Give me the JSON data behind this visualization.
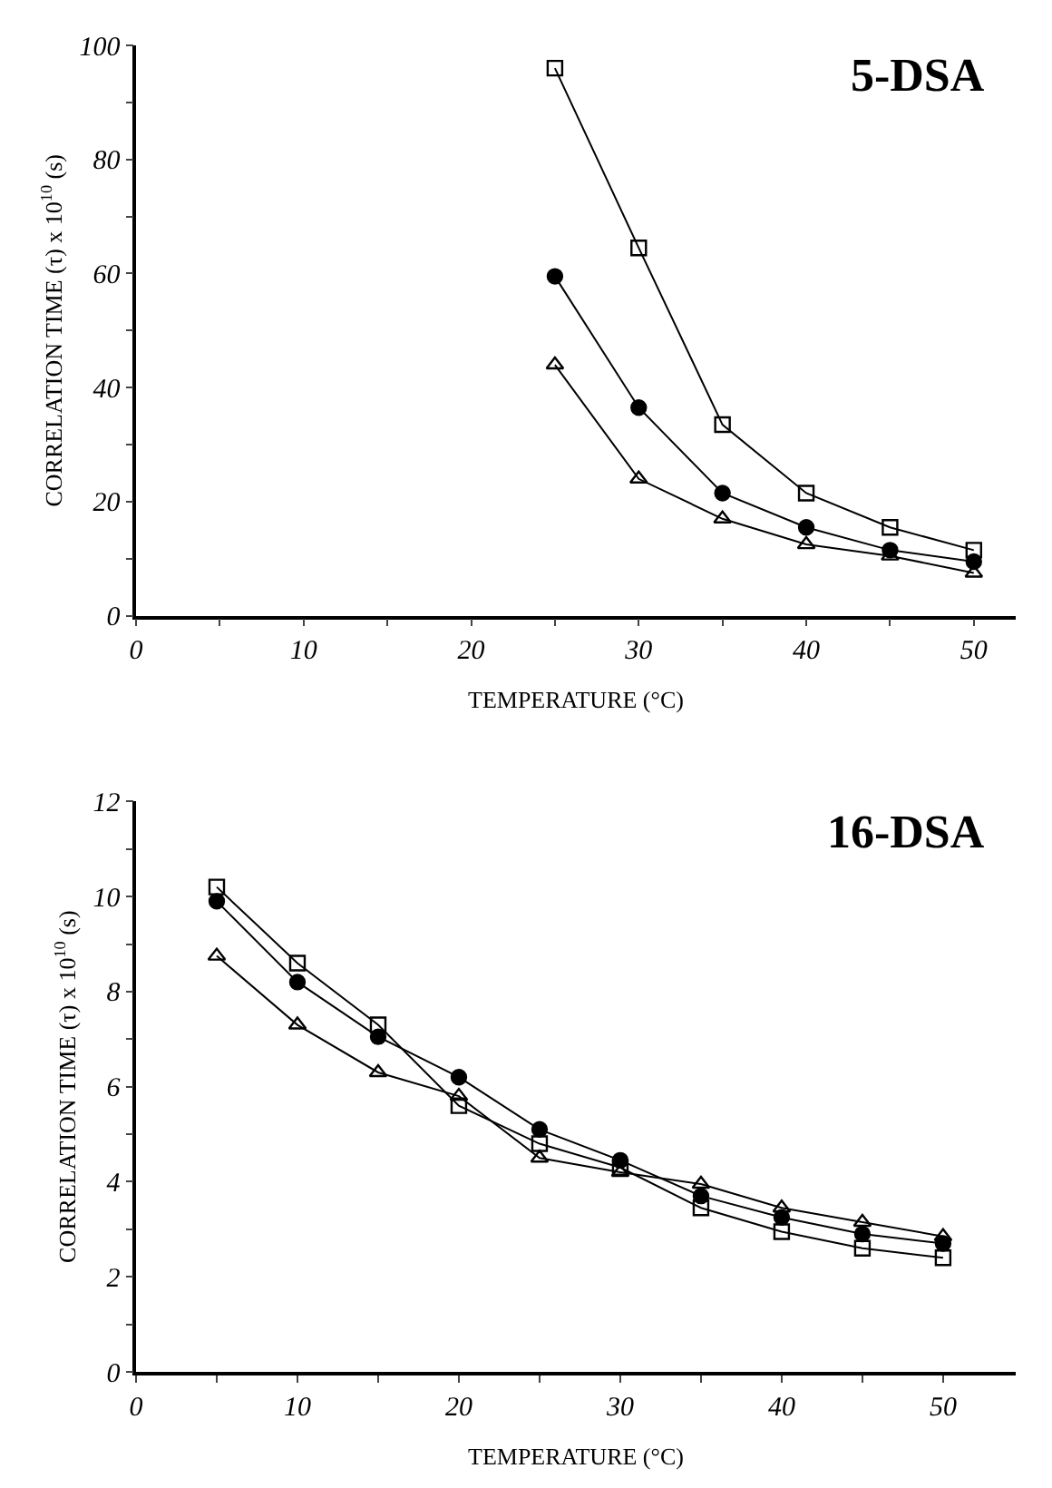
{
  "chart_data": [
    {
      "type": "line",
      "title": "5-DSA",
      "xlabel": "TEMPERATURE (°C)",
      "ylabel": "CORRELATION TIME (τ) x 10$^{10}$ (s)",
      "x": [
        25,
        30,
        35,
        40,
        45,
        50
      ],
      "series": [
        {
          "color": "#000000",
          "marker": "square-open",
          "values": [
            96,
            64.5,
            33.5,
            21.5,
            15.5,
            11.5
          ]
        },
        {
          "color": "#000000",
          "marker": "circle",
          "values": [
            59.5,
            36.5,
            21.5,
            15.5,
            11.5,
            9.5
          ]
        },
        {
          "color": "#000000",
          "marker": "triangle-open",
          "values": [
            44,
            24,
            17,
            12.5,
            10.5,
            7.5
          ]
        }
      ],
      "xlim": [
        0,
        52.5
      ],
      "xticks": [
        0,
        {
          "value": 5,
          "label": null
        },
        10,
        {
          "value": 15,
          "label": null
        },
        20,
        {
          "value": 25,
          "label": null
        },
        30,
        {
          "value": 35,
          "label": null
        },
        40,
        {
          "value": 45,
          "label": null
        },
        50
      ],
      "ylim": [
        0,
        100
      ],
      "yticks": [
        0,
        {
          "value": 10,
          "label": null
        },
        20,
        {
          "value": 30,
          "label": null
        },
        40,
        {
          "value": 50,
          "label": null
        },
        60,
        {
          "value": 70,
          "label": null
        },
        80,
        {
          "value": 90,
          "label": null
        },
        100
      ],
      "line_style": "solid"
    },
    {
      "type": "line",
      "title": "16-DSA",
      "xlabel": "TEMPERATURE (°C)",
      "ylabel": "CORRELATION TIME (τ) x 10$^{10}$ (s)",
      "x": [
        5,
        10,
        15,
        20,
        25,
        30,
        35,
        40,
        45,
        50
      ],
      "series": [
        {
          "color": "#000000",
          "marker": "square-open",
          "values": [
            10.2,
            8.6,
            7.3,
            5.6,
            4.8,
            4.3,
            3.45,
            2.95,
            2.6,
            2.4
          ]
        },
        {
          "color": "#000000",
          "marker": "circle",
          "values": [
            9.9,
            8.2,
            7.05,
            6.2,
            5.1,
            4.45,
            3.7,
            3.25,
            2.9,
            2.7
          ]
        },
        {
          "color": "#000000",
          "marker": "triangle-open",
          "values": [
            8.75,
            7.3,
            6.3,
            5.8,
            4.5,
            4.2,
            3.95,
            3.45,
            3.15,
            2.85
          ]
        }
      ],
      "xlim": [
        0,
        54.5
      ],
      "xticks": [
        0,
        {
          "value": 5,
          "label": null
        },
        10,
        {
          "value": 15,
          "label": null
        },
        20,
        {
          "value": 25,
          "label": null
        },
        30,
        {
          "value": 35,
          "label": null
        },
        40,
        {
          "value": 45,
          "label": null
        },
        50
      ],
      "ylim": [
        0,
        12
      ],
      "yticks": [
        0,
        {
          "value": 1,
          "label": null
        },
        2,
        {
          "value": 3,
          "label": null
        },
        4,
        {
          "value": 5,
          "label": null
        },
        6,
        {
          "value": 7,
          "label": null
        },
        8,
        {
          "value": 9,
          "label": null
        },
        10,
        {
          "value": 11,
          "label": null
        },
        12
      ],
      "line_style": "solid"
    }
  ]
}
